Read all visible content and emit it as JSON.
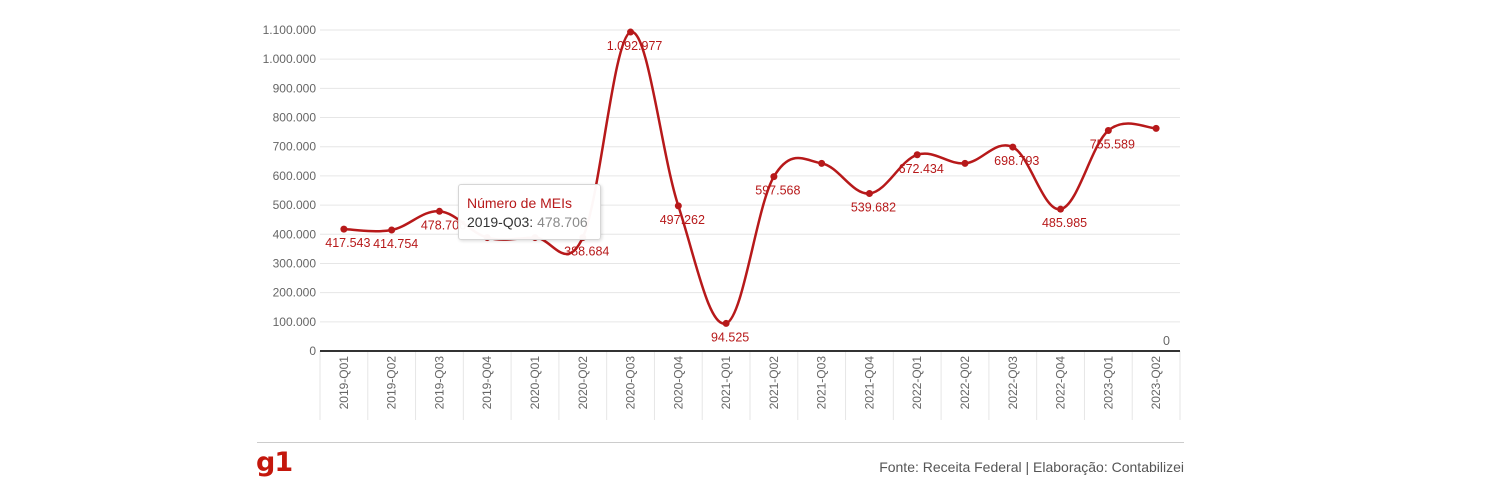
{
  "chart_data": {
    "type": "line",
    "categories": [
      "2019-Q01",
      "2019-Q02",
      "2019-Q03",
      "2019-Q04",
      "2020-Q01",
      "2020-Q02",
      "2020-Q03",
      "2020-Q04",
      "2021-Q01",
      "2021-Q02",
      "2021-Q03",
      "2021-Q04",
      "2022-Q01",
      "2022-Q02",
      "2022-Q03",
      "2022-Q04",
      "2023-Q01",
      "2023-Q02"
    ],
    "series": [
      {
        "name": "Número de MEIs",
        "color": "#b7191a",
        "values": [
          417543,
          414754,
          478706,
          388684,
          388684,
          388684,
          1092977,
          497262,
          94525,
          597568,
          643000,
          539682,
          672434,
          643000,
          698793,
          485985,
          755589,
          763000
        ],
        "labels": [
          "417.543",
          "414.754",
          "478.706",
          "",
          "",
          "388.684",
          "1.092.977",
          "497.262",
          "94.525",
          "597.568",
          "",
          "539.682",
          "672.434",
          "",
          "698.793",
          "485.985",
          "755.589",
          ""
        ]
      }
    ],
    "ylim": [
      0,
      1100000
    ],
    "yticks": [
      0,
      100000,
      200000,
      300000,
      400000,
      500000,
      600000,
      700000,
      800000,
      900000,
      1000000,
      1100000
    ],
    "ytick_labels": [
      "0",
      "100.000",
      "200.000",
      "300.000",
      "400.000",
      "500.000",
      "600.000",
      "700.000",
      "800.000",
      "900.000",
      "1.000.000",
      "1.100.000"
    ],
    "end_label": "0",
    "grid": true,
    "legend": "none"
  },
  "tooltip": {
    "title": "Número de MEIs",
    "category": "2019-Q03:",
    "value": "478.706"
  },
  "footer": {
    "brand": "g1",
    "source": "Fonte: Receita Federal | Elaboração: Contabilizei"
  }
}
